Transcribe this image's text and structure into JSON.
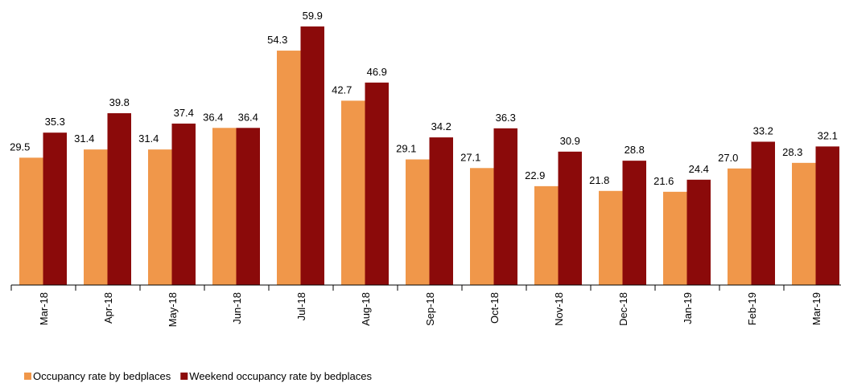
{
  "chart_data": {
    "type": "bar",
    "categories": [
      "Mar-18",
      "Apr-18",
      "May-18",
      "Jun-18",
      "Jul-18",
      "Aug-18",
      "Sep-18",
      "Oct-18",
      "Nov-18",
      "Dec-18",
      "Jan-19",
      "Feb-19",
      "Mar-19"
    ],
    "series": [
      {
        "name": "Occupancy rate by bedplaces",
        "color": "#f0974a",
        "values": [
          29.5,
          31.4,
          31.4,
          36.4,
          54.3,
          42.7,
          29.1,
          27.1,
          22.9,
          21.8,
          21.6,
          27,
          28.3
        ],
        "value_labels": [
          "29.5",
          "31.4",
          "31.4",
          "36.4",
          "54.3",
          "42.7",
          "29.1",
          "27.1",
          "22.9",
          "21.8",
          "21.6",
          "27.0",
          "28.3"
        ]
      },
      {
        "name": "Weekend occupancy rate by bedplaces",
        "color": "#8b0a0a",
        "values": [
          35.3,
          39.8,
          37.4,
          36.4,
          59.9,
          46.9,
          34.2,
          36.3,
          30.9,
          28.8,
          24.4,
          33.2,
          32.1
        ],
        "value_labels": [
          "35.3",
          "39.8",
          "37.4",
          "36.4",
          "59.9",
          "46.9",
          "34.2",
          "36.3",
          "30.9",
          "28.8",
          "24.4",
          "33.2",
          "32.1"
        ]
      }
    ],
    "ylim": [
      0,
      60
    ],
    "legend": "bottom-left"
  }
}
